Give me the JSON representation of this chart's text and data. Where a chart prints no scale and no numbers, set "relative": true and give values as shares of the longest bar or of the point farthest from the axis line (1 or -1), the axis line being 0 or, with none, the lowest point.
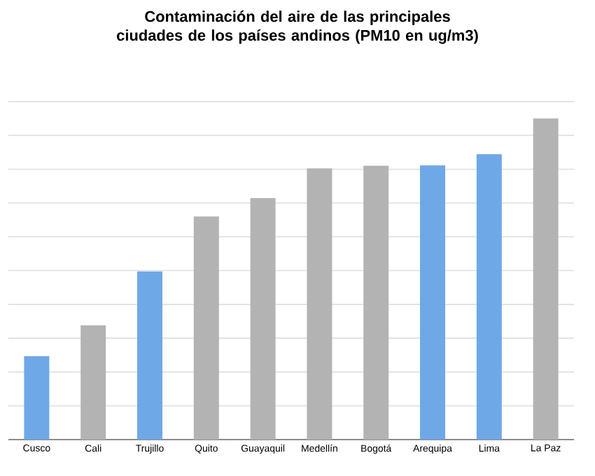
{
  "chart_data": {
    "type": "bar",
    "title": "Contaminación del aire de las principales ciudades de los países andinos (PM10 en ug/m3)",
    "categories": [
      "Cusco",
      "Cali",
      "Trujillo",
      "Quito",
      "Guayaquil",
      "Medellín",
      "Bogotá",
      "Arequipa",
      "Lima",
      "La Paz"
    ],
    "values": [
      0.26,
      0.356,
      0.524,
      0.695,
      0.752,
      0.845,
      0.853,
      0.854,
      0.889,
      1
    ],
    "colors": [
      "#6fa8e6",
      "#b3b3b3",
      "#6fa8e6",
      "#b3b3b3",
      "#b3b3b3",
      "#b3b3b3",
      "#b3b3b3",
      "#6fa8e6",
      "#6fa8e6",
      "#b3b3b3"
    ],
    "relative": true,
    "grid": "y"
  }
}
